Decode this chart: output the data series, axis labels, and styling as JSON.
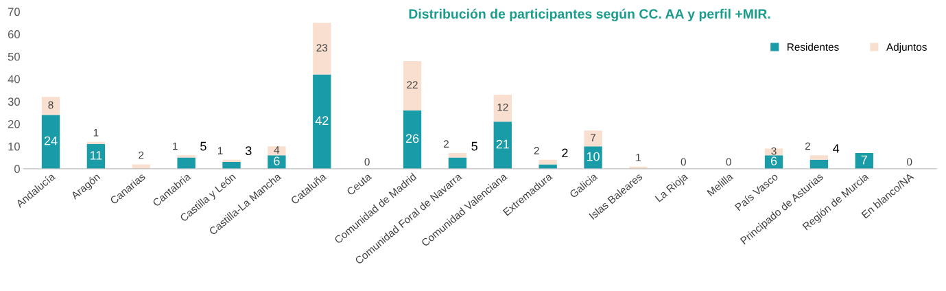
{
  "chart_data": {
    "type": "bar",
    "stacked": true,
    "title": "Distribución de participantes según CC. AA y perfil +MIR.",
    "categories": [
      "Andalucía",
      "Aragón",
      "Canarias",
      "Cantabria",
      "Castilla y León",
      "Castilla-La Mancha",
      "Cataluña",
      "Ceuta",
      "Comunidad de Madrid",
      "Comunidad Foral de Navarra",
      "Comunidad Valenciana",
      "Extremadura",
      "Galicia",
      "Islas Baleares",
      "La Rioja",
      "Melilla",
      "País Vasco",
      "Principado de Asturias",
      "Región de Murcia",
      "En blanco/NA"
    ],
    "series": [
      {
        "name": "Residentes",
        "color": "#1a9ca8",
        "values": [
          24,
          11,
          0,
          5,
          3,
          6,
          42,
          0,
          26,
          5,
          21,
          2,
          10,
          0,
          0,
          0,
          6,
          4,
          7,
          0
        ],
        "value_labels": [
          "24",
          "11",
          null,
          "5",
          "3",
          "6",
          "42",
          "0",
          "26",
          "5",
          "21",
          "2",
          "10",
          null,
          "0",
          "0",
          "6",
          "4",
          "7",
          "0"
        ]
      },
      {
        "name": "Adjuntos",
        "color": "#f9dfcf",
        "values": [
          8,
          1,
          2,
          1,
          1,
          4,
          23,
          0,
          22,
          2,
          12,
          2,
          7,
          1,
          0,
          0,
          3,
          2,
          0,
          0
        ],
        "value_labels": [
          "8",
          "1",
          "2",
          "1",
          "1",
          "4",
          "23",
          null,
          "22",
          "2",
          "12",
          "2",
          "7",
          "1",
          null,
          null,
          "3",
          "2",
          null,
          null
        ]
      }
    ],
    "ylim": [
      0,
      70
    ],
    "yticks": [
      0,
      10,
      20,
      30,
      40,
      50,
      60,
      70
    ],
    "grid": false,
    "legend": "top right"
  }
}
